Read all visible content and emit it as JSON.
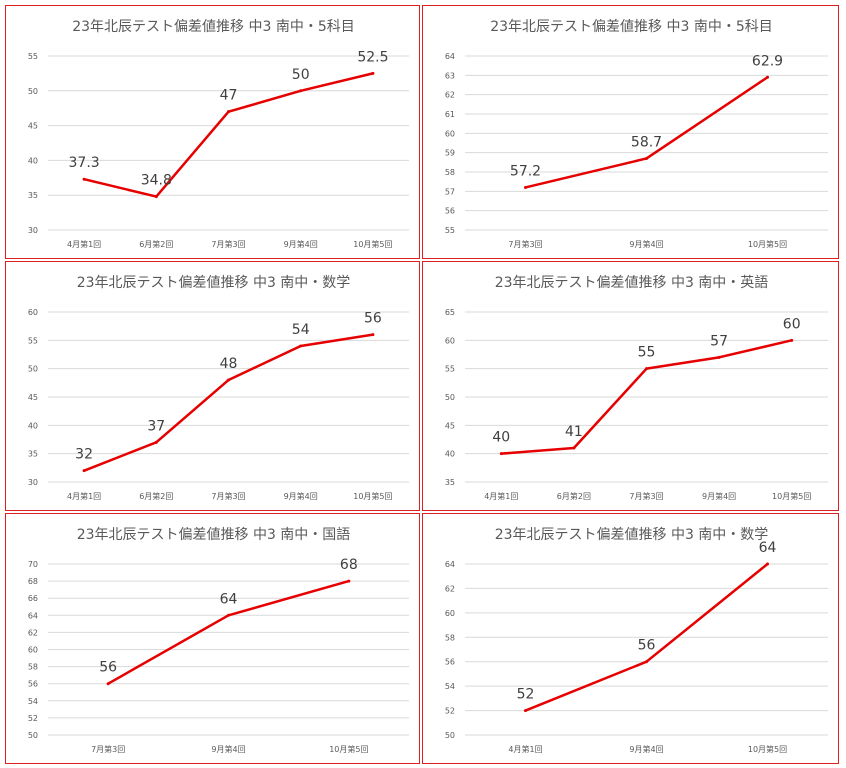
{
  "chart_data": [
    {
      "type": "line",
      "title": "23年北辰テスト偏差値推移 中3 南中・5科目",
      "categories": [
        "4月第1回",
        "6月第2回",
        "7月第3回",
        "9月第4回",
        "10月第5回"
      ],
      "series": [
        {
          "values": [
            37.3,
            34.8,
            47,
            50,
            52.5
          ]
        }
      ],
      "data_labels": [
        "37.3",
        "34.8",
        "47",
        "50",
        "52.5"
      ],
      "ylim": [
        30,
        55
      ],
      "yticks": [
        30,
        35,
        40,
        45,
        50,
        55
      ],
      "color": "#e60000",
      "grid": true
    },
    {
      "type": "line",
      "title": "23年北辰テスト偏差値推移 中3 南中・5科目",
      "categories": [
        "7月第3回",
        "9月第4回",
        "10月第5回"
      ],
      "series": [
        {
          "values": [
            57.2,
            58.7,
            62.9
          ]
        }
      ],
      "data_labels": [
        "57.2",
        "58.7",
        "62.9"
      ],
      "ylim": [
        55,
        64
      ],
      "yticks": [
        55,
        56,
        57,
        58,
        59,
        60,
        61,
        62,
        63,
        64
      ],
      "color": "#e60000",
      "grid": true
    },
    {
      "type": "line",
      "title": "23年北辰テスト偏差値推移 中3 南中・数学",
      "categories": [
        "4月第1回",
        "6月第2回",
        "7月第3回",
        "9月第4回",
        "10月第5回"
      ],
      "series": [
        {
          "values": [
            32,
            37,
            48,
            54,
            56
          ]
        }
      ],
      "data_labels": [
        "32",
        "37",
        "48",
        "54",
        "56"
      ],
      "ylim": [
        30,
        60
      ],
      "yticks": [
        30,
        35,
        40,
        45,
        50,
        55,
        60
      ],
      "color": "#e60000",
      "grid": true
    },
    {
      "type": "line",
      "title": "23年北辰テスト偏差値推移 中3 南中・英語",
      "categories": [
        "4月第1回",
        "6月第2回",
        "7月第3回",
        "9月第4回",
        "10月第5回"
      ],
      "series": [
        {
          "values": [
            40,
            41,
            55,
            57,
            60
          ]
        }
      ],
      "data_labels": [
        "40",
        "41",
        "55",
        "57",
        "60"
      ],
      "ylim": [
        35,
        65
      ],
      "yticks": [
        35,
        40,
        45,
        50,
        55,
        60,
        65
      ],
      "color": "#e60000",
      "grid": true
    },
    {
      "type": "line",
      "title": "23年北辰テスト偏差値推移 中3 南中・国語",
      "categories": [
        "7月第3回",
        "9月第4回",
        "10月第5回"
      ],
      "series": [
        {
          "values": [
            56,
            64,
            68
          ]
        }
      ],
      "data_labels": [
        "56",
        "64",
        "68"
      ],
      "ylim": [
        50,
        70
      ],
      "yticks": [
        50,
        52,
        54,
        56,
        58,
        60,
        62,
        64,
        66,
        68,
        70
      ],
      "color": "#e60000",
      "grid": true
    },
    {
      "type": "line",
      "title": "23年北辰テスト偏差値推移 中3 南中・数学",
      "categories": [
        "4月第1回",
        "9月第4回",
        "10月第5回"
      ],
      "series": [
        {
          "values": [
            52,
            56,
            64
          ]
        }
      ],
      "data_labels": [
        "52",
        "56",
        "64"
      ],
      "ylim": [
        50,
        64
      ],
      "yticks": [
        50,
        52,
        54,
        56,
        58,
        60,
        62,
        64
      ],
      "color": "#e60000",
      "grid": true
    }
  ]
}
